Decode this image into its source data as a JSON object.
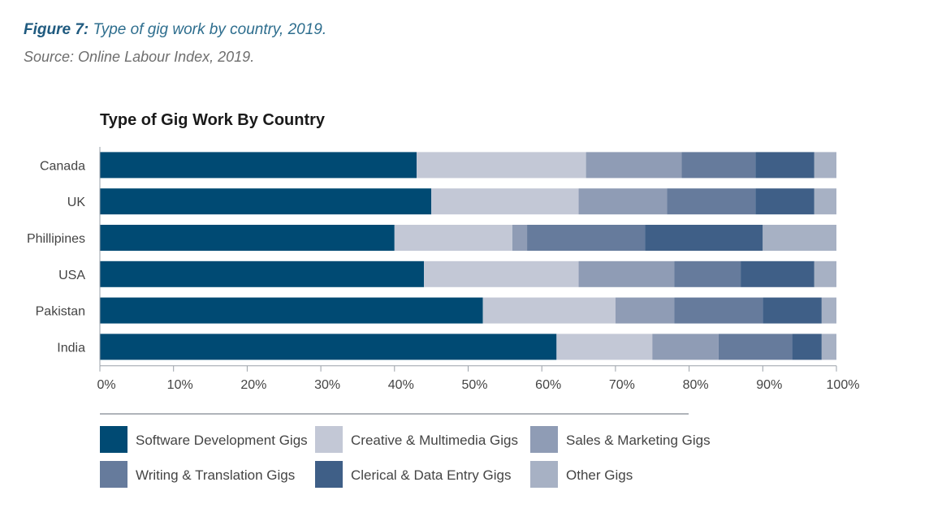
{
  "figure": {
    "label": "Figure 7:",
    "caption": "Type of gig work by country, 2019.",
    "source": "Source: Online Labour Index, 2019."
  },
  "chart_data": {
    "type": "bar",
    "orientation": "horizontal",
    "stacked": true,
    "title": "Type of Gig Work By Country",
    "categories": [
      "Canada",
      "UK",
      "Phillipines",
      "USA",
      "Pakistan",
      "India"
    ],
    "series": [
      {
        "name": "Software Development Gigs",
        "color": "#004a73",
        "values": [
          43,
          45,
          40,
          44,
          52,
          62
        ]
      },
      {
        "name": "Creative & Multimedia Gigs",
        "color": "#c3c8d6",
        "values": [
          23,
          20,
          16,
          21,
          18,
          13
        ]
      },
      {
        "name": "Sales & Marketing Gigs",
        "color": "#8f9cb5",
        "values": [
          13,
          12,
          2,
          13,
          8,
          9
        ]
      },
      {
        "name": "Writing & Translation Gigs",
        "color": "#667b9c",
        "values": [
          10,
          12,
          16,
          9,
          12,
          10
        ]
      },
      {
        "name": "Clerical & Data Entry Gigs",
        "color": "#3f5f87",
        "values": [
          8,
          8,
          16,
          10,
          8,
          4
        ]
      },
      {
        "name": "Other Gigs",
        "color": "#a7b1c4",
        "values": [
          3,
          3,
          10,
          3,
          2,
          2
        ]
      }
    ],
    "x_ticks": [
      "0%",
      "10%",
      "20%",
      "30%",
      "40%",
      "50%",
      "60%",
      "70%",
      "80%",
      "90%",
      "100%"
    ],
    "xlim": [
      0,
      100
    ],
    "xlabel": "",
    "ylabel": "",
    "grid": false,
    "legend_position": "bottom"
  }
}
